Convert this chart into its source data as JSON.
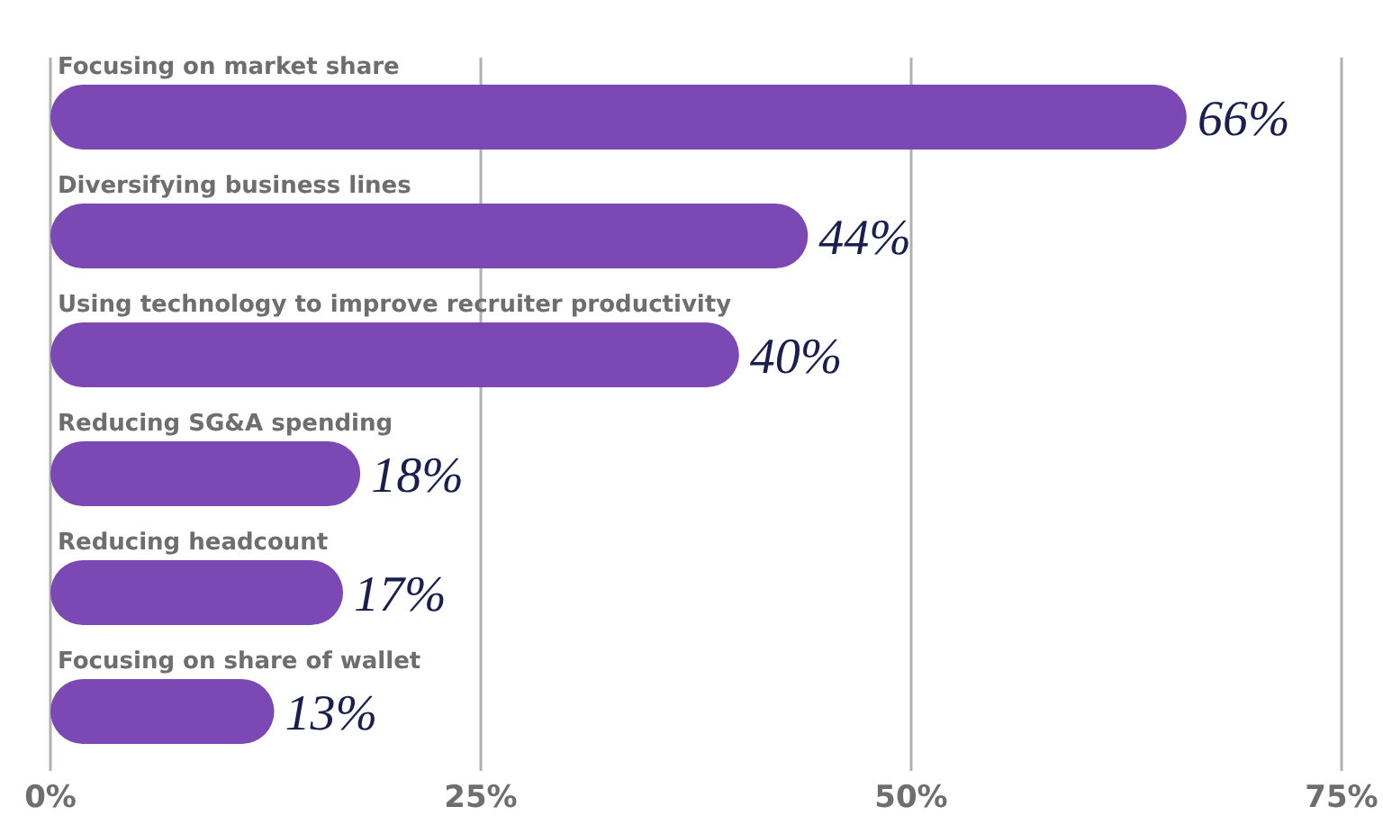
{
  "chart_data": {
    "type": "bar",
    "orientation": "horizontal",
    "categories": [
      "Focusing on market share",
      "Diversifying business lines",
      "Using technology to improve recruiter productivity",
      "Reducing SG&A spending",
      "Reducing headcount",
      "Focusing on share of wallet"
    ],
    "values": [
      66,
      44,
      40,
      18,
      17,
      13
    ],
    "value_labels": [
      "66%",
      "44%",
      "40%",
      "18%",
      "17%",
      "13%"
    ],
    "color": "#7b48b4",
    "xlim": [
      0,
      75
    ],
    "xticks": [
      {
        "value": 0,
        "label": "0%"
      },
      {
        "value": 25,
        "label": "25%"
      },
      {
        "value": 50,
        "label": "50%"
      },
      {
        "value": 75,
        "label": "75%"
      }
    ],
    "grid": "x"
  }
}
